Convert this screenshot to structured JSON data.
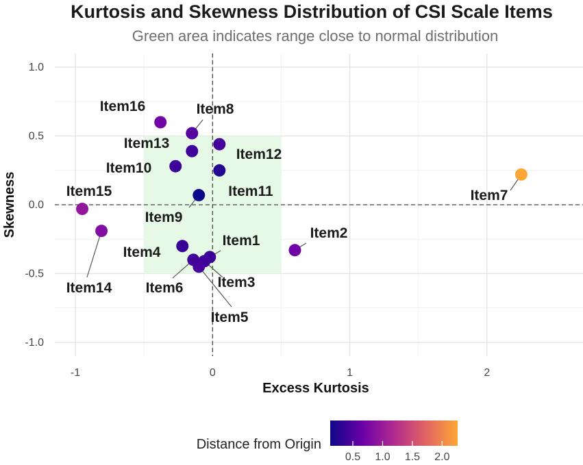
{
  "chart_data": {
    "type": "scatter",
    "title": "Kurtosis and Skewness Distribution of CSI Scale Items",
    "subtitle": "Green area indicates range close to normal distribution",
    "xlabel": "Excess Kurtosis",
    "ylabel": "Skewness",
    "xlim": [
      -1.15,
      2.7
    ],
    "ylim": [
      -1.1,
      1.1
    ],
    "x_ticks": [
      -1,
      0,
      1,
      2
    ],
    "x_tick_labels": [
      "-1",
      "0",
      "1",
      "2"
    ],
    "y_ticks": [
      -1.0,
      -0.5,
      0.0,
      0.5,
      1.0
    ],
    "y_tick_labels": [
      "-1.0",
      "-0.5",
      "0.0",
      "0.5",
      "1.0"
    ],
    "grid": true,
    "reference_lines": {
      "x": 0,
      "y": 0,
      "style": "dashed"
    },
    "normal_region": {
      "x": [
        -0.5,
        0.5
      ],
      "y": [
        -0.5,
        0.5
      ],
      "color": "#e6f9e6"
    },
    "points": [
      {
        "label": "Item1",
        "x": -0.02,
        "y": -0.38,
        "dist": 0.38
      },
      {
        "label": "Item2",
        "x": 0.6,
        "y": -0.33,
        "dist": 0.69
      },
      {
        "label": "Item3",
        "x": -0.06,
        "y": -0.41,
        "dist": 0.41
      },
      {
        "label": "Item4",
        "x": -0.22,
        "y": -0.3,
        "dist": 0.37
      },
      {
        "label": "Item5",
        "x": -0.1,
        "y": -0.45,
        "dist": 0.46
      },
      {
        "label": "Item6",
        "x": -0.14,
        "y": -0.4,
        "dist": 0.42
      },
      {
        "label": "Item7",
        "x": 2.25,
        "y": 0.22,
        "dist": 2.26
      },
      {
        "label": "Item8",
        "x": -0.15,
        "y": 0.52,
        "dist": 0.54
      },
      {
        "label": "Item9",
        "x": -0.1,
        "y": 0.07,
        "dist": 0.12
      },
      {
        "label": "Item10",
        "x": -0.27,
        "y": 0.28,
        "dist": 0.39
      },
      {
        "label": "Item11",
        "x": 0.05,
        "y": 0.25,
        "dist": 0.26
      },
      {
        "label": "Item12",
        "x": 0.05,
        "y": 0.44,
        "dist": 0.44
      },
      {
        "label": "Item13",
        "x": -0.15,
        "y": 0.39,
        "dist": 0.42
      },
      {
        "label": "Item14",
        "x": -0.81,
        "y": -0.19,
        "dist": 0.83
      },
      {
        "label": "Item15",
        "x": -0.95,
        "y": -0.03,
        "dist": 0.95
      },
      {
        "label": "Item16",
        "x": -0.38,
        "y": 0.6,
        "dist": 0.71
      }
    ],
    "legend": {
      "title": "Distance from Origin",
      "position": "bottom",
      "colormap": "plasma",
      "range": [
        0.12,
        2.26
      ],
      "ticks": [
        0.5,
        1.0,
        1.5,
        2.0
      ],
      "tick_labels": [
        "0.5",
        "1.0",
        "1.5",
        "2.0"
      ]
    }
  }
}
